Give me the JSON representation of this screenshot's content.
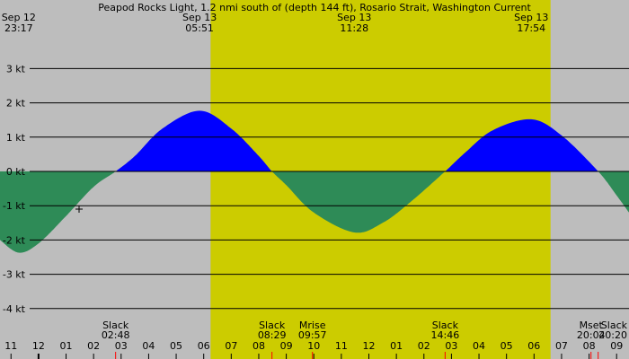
{
  "chart_data": {
    "type": "area",
    "title": "Peapod Rocks Light, 1.2 nmi south of (depth 144 ft), Rosario Strait, Washington Current",
    "ylabel": "",
    "xlabel": "",
    "y_unit": "kt",
    "ylim": [
      -4.4,
      3.7
    ],
    "x_unit": "hours since Sep 12 23:00 (axis)",
    "xlim": [
      -0.4,
      22.45
    ],
    "grid": true,
    "y_ticks": [
      3,
      2,
      1,
      0,
      -1,
      -2,
      -3,
      -4
    ],
    "y_tick_labels": [
      "3 kt",
      "2 kt",
      "1 kt",
      "0 kt",
      "-1 kt",
      "-2 kt",
      "-3 kt",
      "-4 kt"
    ],
    "x_tick_labels": [
      "11",
      "12",
      "01",
      "02",
      "03",
      "04",
      "05",
      "06",
      "07",
      "08",
      "09",
      "10",
      "11",
      "12",
      "01",
      "02",
      "03",
      "04",
      "05",
      "06",
      "07",
      "08",
      "09"
    ],
    "top_labels": [
      {
        "date": "Sep 12",
        "time": "23:17",
        "x": 0.28
      },
      {
        "date": "Sep 13",
        "time": "05:51",
        "x": 6.85
      },
      {
        "date": "Sep 13",
        "time": "11:28",
        "x": 12.47
      },
      {
        "date": "Sep 13",
        "time": "17:54",
        "x": 18.9
      }
    ],
    "bottom_events": [
      {
        "label": "Slack",
        "time": "02:48",
        "x": 3.8
      },
      {
        "label": "Slack",
        "time": "08:29",
        "x": 9.48
      },
      {
        "label": "Mrise",
        "time": "09:57",
        "x": 10.95
      },
      {
        "label": "Slack",
        "time": "14:46",
        "x": 15.77
      },
      {
        "label": "Mset",
        "time": "20:04",
        "x": 21.07
      },
      {
        "label": "Slack",
        "time": "20:20",
        "x": 21.33
      }
    ],
    "series": [
      {
        "points": [
          [
            -0.4,
            -2.0
          ],
          [
            0.28,
            -2.37
          ],
          [
            1.0,
            -2.1
          ],
          [
            2.0,
            -1.3
          ],
          [
            3.0,
            -0.45
          ],
          [
            3.8,
            0.0
          ],
          [
            4.5,
            0.45
          ],
          [
            5.5,
            1.25
          ],
          [
            6.85,
            1.77
          ],
          [
            8.0,
            1.25
          ],
          [
            9.0,
            0.45
          ],
          [
            9.48,
            0.0
          ],
          [
            10.0,
            -0.4
          ],
          [
            11.0,
            -1.2
          ],
          [
            12.47,
            -1.78
          ],
          [
            13.5,
            -1.5
          ],
          [
            14.5,
            -0.9
          ],
          [
            15.77,
            0.0
          ],
          [
            16.5,
            0.55
          ],
          [
            17.5,
            1.2
          ],
          [
            18.9,
            1.52
          ],
          [
            20.0,
            1.05
          ],
          [
            21.33,
            0.0
          ],
          [
            22.0,
            -0.7
          ],
          [
            22.45,
            -1.2
          ]
        ]
      }
    ],
    "daylight": [
      7.25,
      19.6
    ],
    "colors": {
      "night": "#bdbdbd",
      "day": "#cccc00",
      "flood": "#0000ff",
      "ebb": "#2e8b57",
      "grid": "#000000",
      "event_marker": "#ff0000"
    }
  }
}
